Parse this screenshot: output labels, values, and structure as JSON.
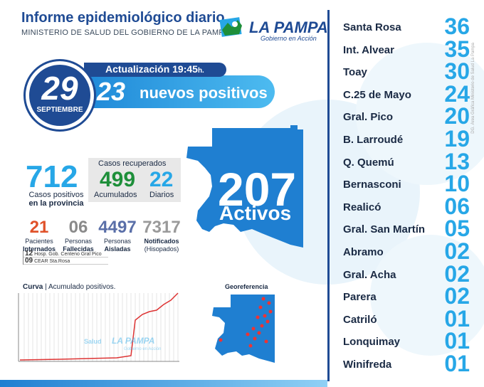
{
  "header": {
    "title": "Informe epidemiológico diario",
    "subtitle": "MINISTERIO DE SALUD DEL GOBIERNO DE LA PAMPA",
    "logo_name": "LA PAMPA",
    "logo_tagline": "Gobierno en Acción"
  },
  "date": {
    "day": "29",
    "month": "SEPTIEMBRE"
  },
  "update": {
    "label": "Actualización 19:45",
    "suffix": "h."
  },
  "new_cases": {
    "value": "23",
    "label": "nuevos positivos"
  },
  "totals": {
    "positive_value": "712",
    "positive_label_1": "Casos positivos",
    "positive_label_2": "en la provincia"
  },
  "recovered": {
    "title": "Casos recuperados",
    "accumulated_value": "499",
    "accumulated_label": "Acumulados",
    "daily_value": "22",
    "daily_label": "Diarios"
  },
  "stats": [
    {
      "value": "21",
      "label1": "Pacientes",
      "label2": "Internados",
      "color": "#e0522a"
    },
    {
      "value": "06",
      "label1": "Personas",
      "label2": "Fallecidas",
      "color": "#8a8a8a"
    },
    {
      "value": "4497",
      "label1": "Personas",
      "label2": "Aisladas",
      "color": "#5a6fa8"
    },
    {
      "value": "7317",
      "label1": "Notificados",
      "label2": "(Hisopados)",
      "color": "#9a9a9a"
    }
  ],
  "hospital_breakdown": [
    {
      "value": "12",
      "label": "Hosp. Gob. Centeno Gral Pico"
    },
    {
      "value": "09",
      "label": "CEAR Sta.Rosa"
    }
  ],
  "active": {
    "value": "207",
    "label": "Activos"
  },
  "curve": {
    "title": "Curva",
    "subtitle": "Acumulado positivos."
  },
  "watermark": {
    "salud": "Salud",
    "logo": "LA PAMPA",
    "tagline": "Gobierno en Acción"
  },
  "georef": {
    "title": "Georeferencia"
  },
  "side_note": "DG. Área Gráfica Ministerio de Salud La Pampa",
  "localities": [
    {
      "name": "Santa Rosa",
      "value": "36"
    },
    {
      "name": "Int. Alvear",
      "value": "35"
    },
    {
      "name": "Toay",
      "value": "30"
    },
    {
      "name": "C.25 de Mayo",
      "value": "24"
    },
    {
      "name": "Gral. Pico",
      "value": "20"
    },
    {
      "name": "B. Larroudé",
      "value": "19"
    },
    {
      "name": "Q. Quemú",
      "value": "13"
    },
    {
      "name": "Bernasconi",
      "value": "10"
    },
    {
      "name": "Realicó",
      "value": "06"
    },
    {
      "name": "Gral. San Martín",
      "value": "05"
    },
    {
      "name": "Abramo",
      "value": "02"
    },
    {
      "name": "Gral. Acha",
      "value": "02"
    },
    {
      "name": "Parera",
      "value": "02"
    },
    {
      "name": "Catriló",
      "value": "01"
    },
    {
      "name": "Lonquimay",
      "value": "01"
    },
    {
      "name": "Winifreda",
      "value": "01"
    }
  ],
  "colors": {
    "primary": "#1f4b94",
    "accent": "#27a7e7",
    "green": "#1e8f3a",
    "red": "#e0522a"
  }
}
